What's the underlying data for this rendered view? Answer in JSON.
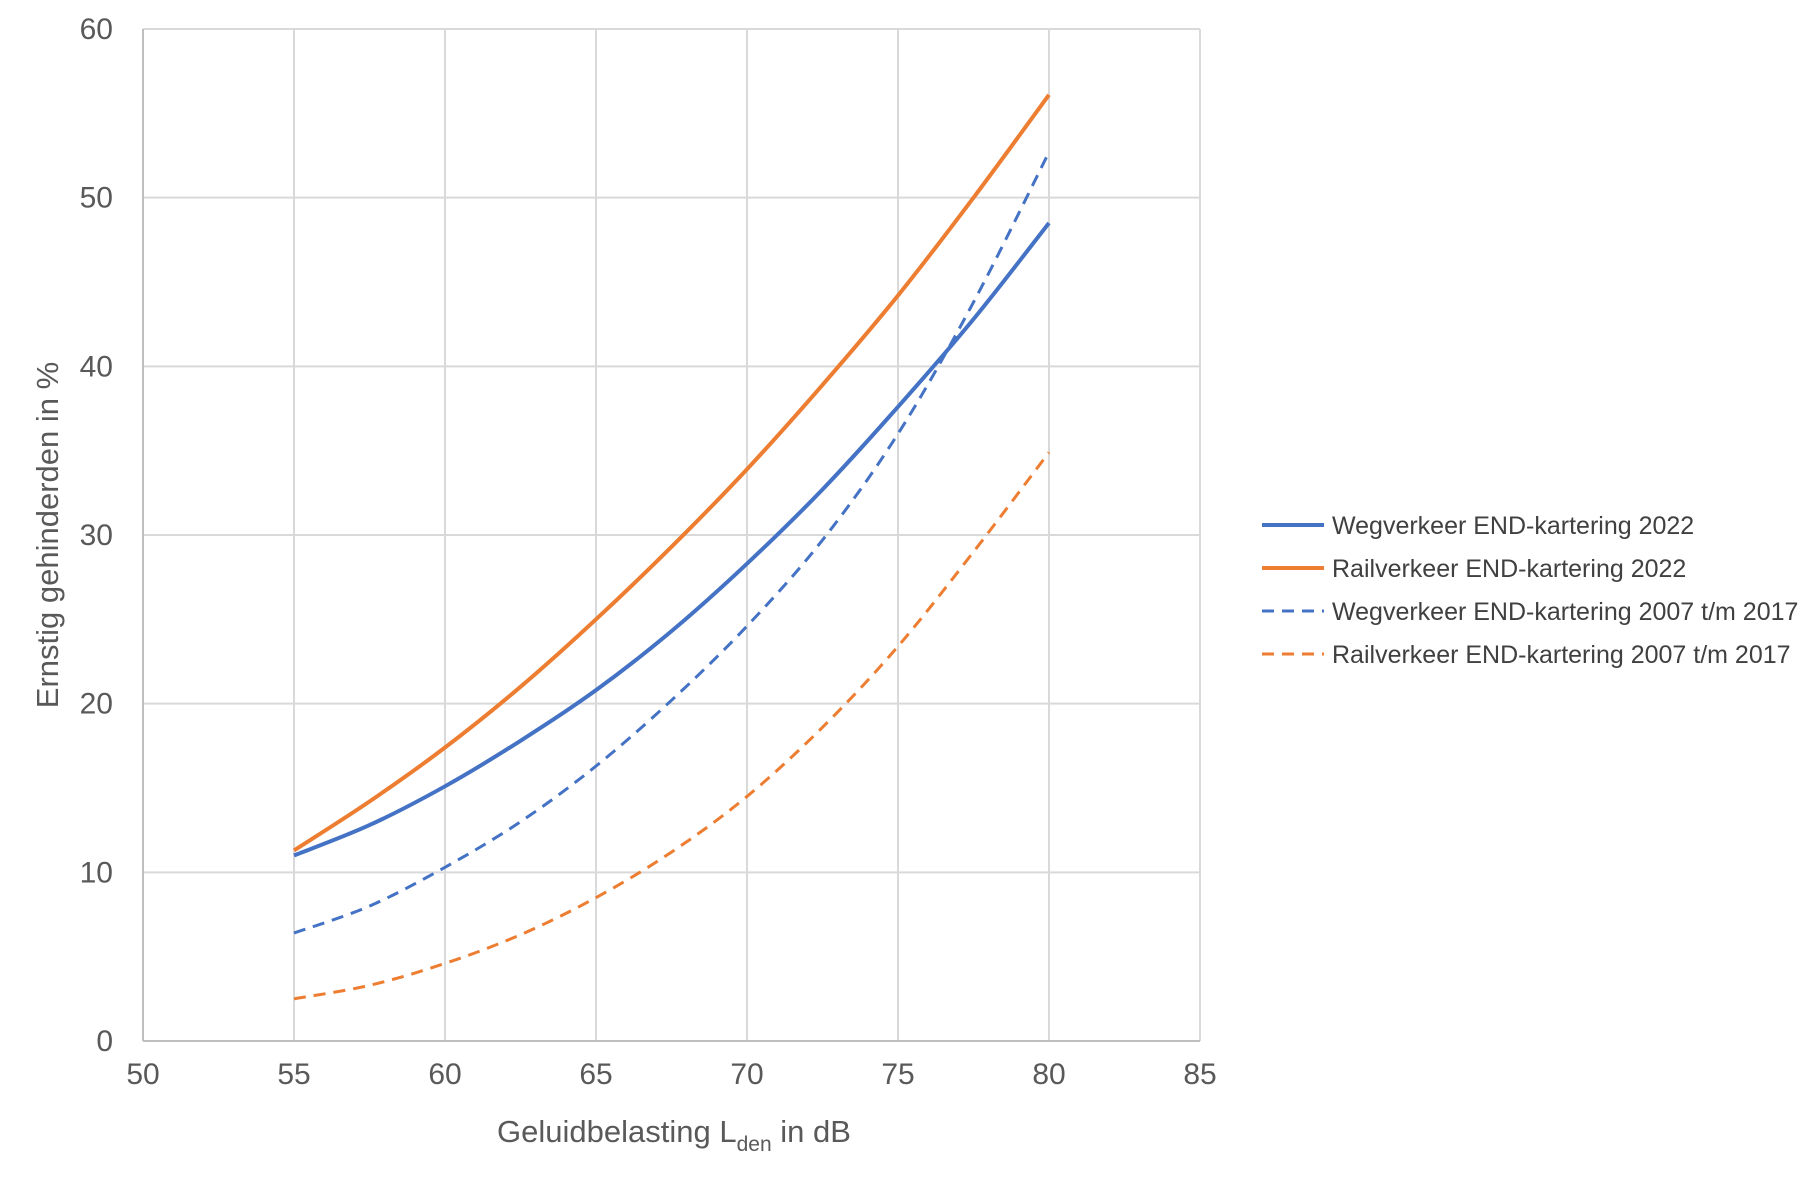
{
  "chart_data": {
    "type": "line",
    "title": "",
    "xlabel": {
      "main": "Geluidbelasting L",
      "subscript": "den",
      "suffix": " in dB"
    },
    "ylabel": "Ernstig gehinderden in %",
    "xlim": [
      50,
      85
    ],
    "ylim": [
      0,
      60
    ],
    "xticks": [
      50,
      55,
      60,
      65,
      70,
      75,
      80,
      85
    ],
    "yticks": [
      0,
      10,
      20,
      30,
      40,
      50,
      60
    ],
    "grid": true,
    "legend_position": "right",
    "x": [
      55,
      57.5,
      60,
      62.5,
      65,
      67.5,
      70,
      72.5,
      75,
      77.5,
      80
    ],
    "series": [
      {
        "name": "Wegverkeer END-kartering 2022",
        "color": "#4472C4",
        "dash": "solid",
        "values": [
          11.0,
          12.8,
          15.1,
          17.8,
          20.8,
          24.3,
          28.3,
          32.7,
          37.6,
          42.8,
          48.5
        ]
      },
      {
        "name": "Railverkeer END-kartering 2022",
        "color": "#ED7D31",
        "dash": "solid",
        "values": [
          11.3,
          14.2,
          17.4,
          21.0,
          25.0,
          29.3,
          33.9,
          38.9,
          44.2,
          50.0,
          56.1
        ]
      },
      {
        "name": "Wegverkeer END-kartering 2007 t/m 2017",
        "color": "#4472C4",
        "dash": "dashed",
        "values": [
          6.4,
          8.0,
          10.3,
          13.0,
          16.3,
          20.2,
          24.6,
          29.7,
          36.0,
          43.8,
          52.7
        ]
      },
      {
        "name": "Railverkeer END-kartering 2007 t/m 2017",
        "color": "#ED7D31",
        "dash": "dashed",
        "values": [
          2.5,
          3.3,
          4.6,
          6.3,
          8.5,
          11.2,
          14.5,
          18.6,
          23.4,
          29.0,
          34.9
        ]
      }
    ]
  }
}
